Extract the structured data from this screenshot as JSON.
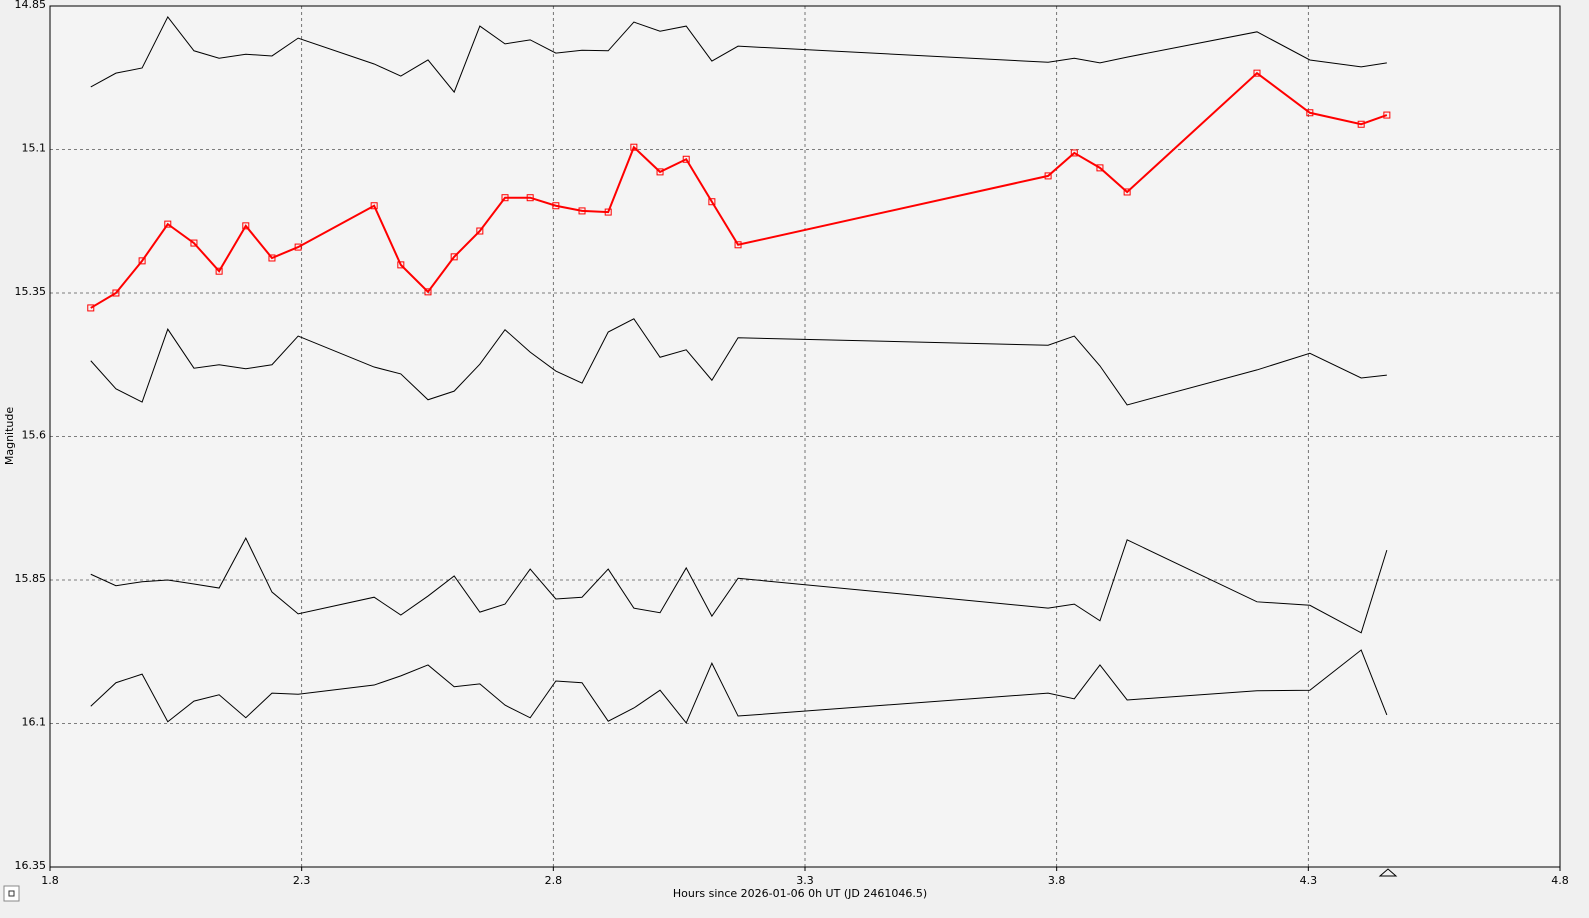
{
  "chart_data": {
    "type": "line",
    "xlabel": "Hours since 2026-01-06 0h UT (JD 2461046.5)",
    "ylabel": "Magnitude",
    "xlim": [
      1.8,
      4.8
    ],
    "xticks": [
      1.8,
      2.3,
      2.8,
      3.3,
      3.8,
      4.3,
      4.8
    ],
    "ylim": [
      16.35,
      14.85
    ],
    "yticks": [
      14.85,
      15.1,
      15.35,
      15.6,
      15.85,
      16.1,
      16.35
    ],
    "y_inverted": true,
    "grid": true,
    "x": [
      1.881,
      1.931,
      1.983,
      2.034,
      2.086,
      2.136,
      2.189,
      2.241,
      2.293,
      2.444,
      2.497,
      2.551,
      2.603,
      2.654,
      2.704,
      2.754,
      2.805,
      2.857,
      2.909,
      2.96,
      3.012,
      3.064,
      3.115,
      3.167,
      3.783,
      3.835,
      3.886,
      3.94,
      4.198,
      4.303,
      4.405,
      4.456
    ],
    "series": [
      {
        "color": "#ff0000",
        "marker": "square",
        "values": [
          15.376,
          15.35,
          15.294,
          15.23,
          15.263,
          15.312,
          15.233,
          15.289,
          15.27,
          15.198,
          15.301,
          15.348,
          15.287,
          15.242,
          15.184,
          15.184,
          15.198,
          15.207,
          15.209,
          15.096,
          15.139,
          15.117,
          15.191,
          15.266,
          15.146,
          15.106,
          15.132,
          15.174,
          14.967,
          15.036,
          15.056,
          15.04
        ]
      },
      {
        "color": "#000000",
        "values": [
          14.991,
          14.967,
          14.958,
          14.869,
          14.928,
          14.941,
          14.934,
          14.937,
          14.906,
          14.951,
          14.972,
          14.944,
          15.0,
          14.885,
          14.916,
          14.909,
          14.932,
          14.927,
          14.928,
          14.878,
          14.894,
          14.885,
          14.946,
          14.92,
          14.948,
          14.941,
          14.949,
          14.939,
          14.895,
          14.944,
          14.956,
          14.949
        ]
      },
      {
        "color": "#000000",
        "values": [
          15.468,
          15.517,
          15.54,
          15.413,
          15.481,
          15.475,
          15.482,
          15.475,
          15.425,
          15.479,
          15.491,
          15.536,
          15.521,
          15.474,
          15.414,
          15.453,
          15.486,
          15.507,
          15.418,
          15.395,
          15.462,
          15.449,
          15.502,
          15.428,
          15.441,
          15.425,
          15.477,
          15.545,
          15.484,
          15.455,
          15.498,
          15.493
        ]
      },
      {
        "color": "#000000",
        "values": [
          15.84,
          15.86,
          15.853,
          15.85,
          15.857,
          15.864,
          15.777,
          15.871,
          15.909,
          15.88,
          15.911,
          15.878,
          15.843,
          15.906,
          15.892,
          15.831,
          15.883,
          15.88,
          15.831,
          15.899,
          15.907,
          15.829,
          15.913,
          15.847,
          15.899,
          15.892,
          15.921,
          15.78,
          15.888,
          15.894,
          15.942,
          15.798
        ]
      },
      {
        "color": "#000000",
        "values": [
          16.07,
          16.029,
          16.014,
          16.097,
          16.061,
          16.05,
          16.09,
          16.047,
          16.049,
          16.033,
          16.017,
          15.998,
          16.036,
          16.031,
          16.068,
          16.09,
          16.026,
          16.029,
          16.096,
          16.073,
          16.042,
          16.099,
          15.995,
          16.087,
          16.047,
          16.057,
          15.998,
          16.059,
          16.043,
          16.042,
          15.972,
          16.085
        ]
      }
    ]
  }
}
